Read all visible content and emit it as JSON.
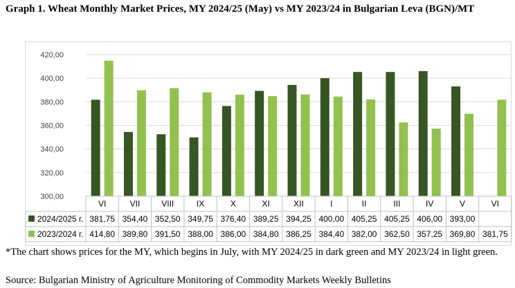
{
  "title": "Graph 1. Wheat Monthly Market Prices, MY 2024/25 (May) vs MY 2023/24 in Bulgarian Leva (BGN)/MT",
  "note": "*The chart shows prices for the MY, which begins in July, with MY 2024/25 in dark green and MY 2023/24 in light green.",
  "source": "Source: Bulgarian Ministry of Agriculture Monitoring of Commodity Markets Weekly Bulletins",
  "colors": {
    "series1": "#375623",
    "series2": "#92c14f",
    "grid": "#d9d9d9",
    "text": "#404040"
  },
  "chart_data": {
    "type": "bar",
    "categories": [
      "VI",
      "VII",
      "VIII",
      "IX",
      "X",
      "XI",
      "XII",
      "I",
      "II",
      "III",
      "IV",
      "V",
      "VI"
    ],
    "series": [
      {
        "name": "2024/2025 г.",
        "values": [
          381.75,
          354.4,
          352.5,
          349.75,
          376.4,
          389.25,
          394.25,
          400.0,
          405.25,
          405.25,
          406.0,
          393.0,
          null
        ],
        "labels": [
          "381,75",
          "354,40",
          "352,50",
          "349,75",
          "376,40",
          "389,25",
          "394,25",
          "400,00",
          "405,25",
          "405,25",
          "406,00",
          "393,00",
          ""
        ]
      },
      {
        "name": "2023/2024 г.",
        "values": [
          414.8,
          389.8,
          391.5,
          388.0,
          386.0,
          384.8,
          386.25,
          384.4,
          382.0,
          362.5,
          357.25,
          369.8,
          381.75
        ],
        "labels": [
          "414,80",
          "389,80",
          "391,50",
          "388,00",
          "386,00",
          "384,80",
          "386,25",
          "384,40",
          "382,00",
          "362,50",
          "357,25",
          "369,80",
          "381,75"
        ]
      }
    ],
    "ylim": [
      300,
      420
    ],
    "yticks": [
      "300,00",
      "320,00",
      "340,00",
      "360,00",
      "380,00",
      "400,00",
      "420,00"
    ],
    "grid": true,
    "legend": "data-table"
  }
}
